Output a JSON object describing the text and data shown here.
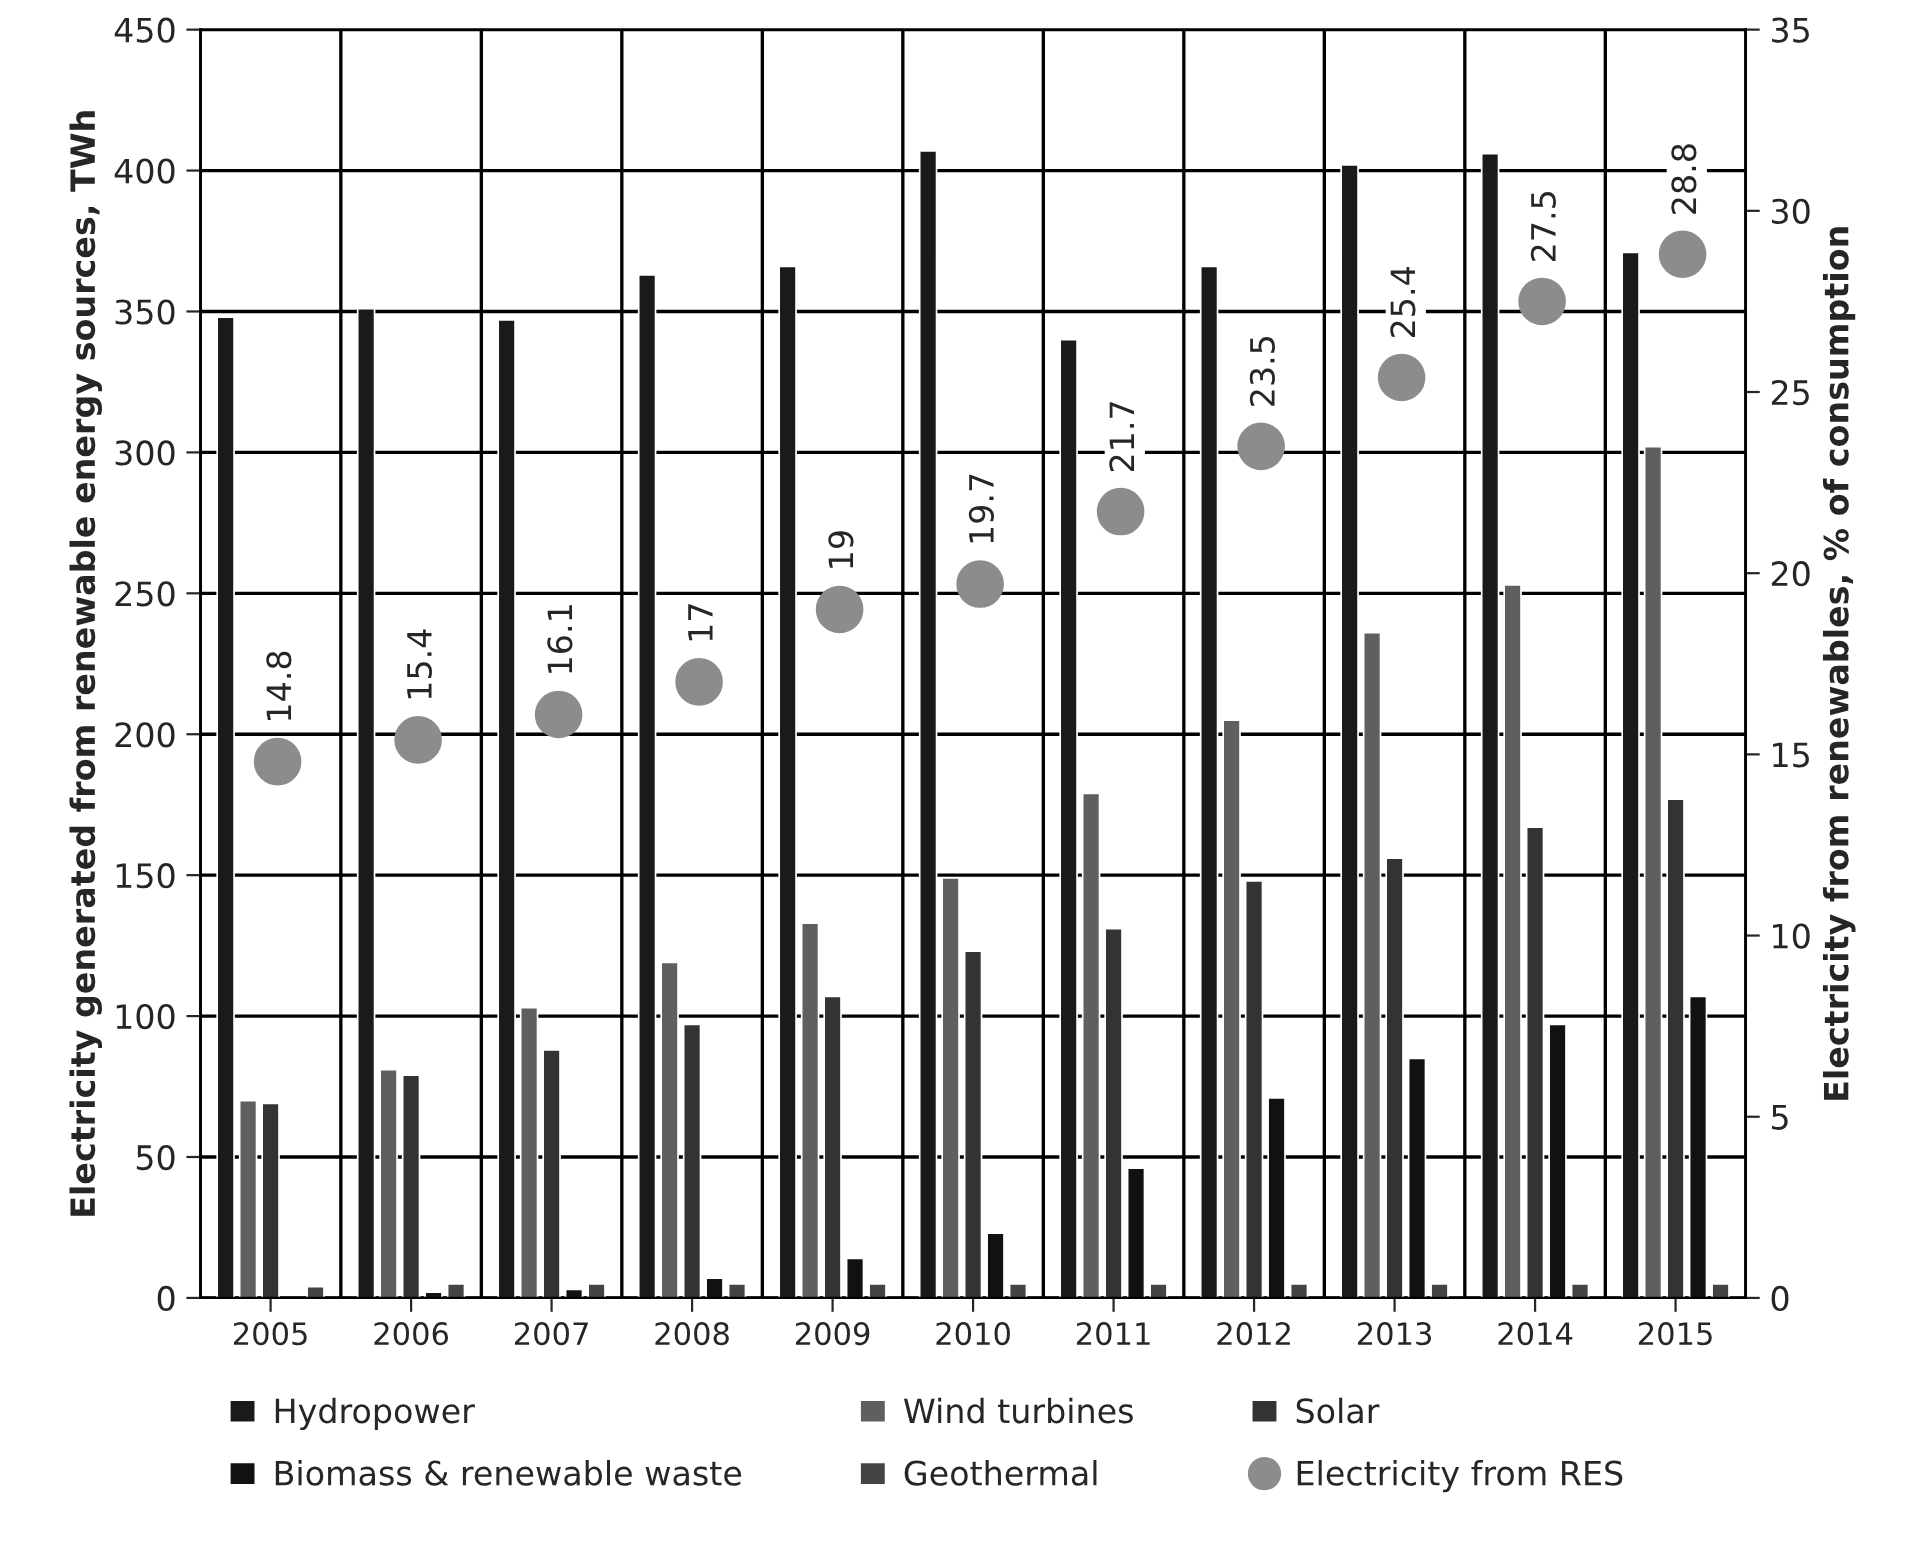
{
  "chart_data": {
    "type": "bar",
    "ylabel": "Electricity generated from renewable energy sources, TWh",
    "y2label": "Electricity from renewables, % of consumption",
    "categories": [
      "2005",
      "2006",
      "2007",
      "2008",
      "2009",
      "2010",
      "2011",
      "2012",
      "2013",
      "2014",
      "2015"
    ],
    "series": [
      {
        "name": "Hydropower",
        "color": "#1a1a1a",
        "values": [
          348,
          351,
          347,
          363,
          366,
          407,
          340,
          366,
          402,
          406,
          371
        ]
      },
      {
        "name": "Wind turbines",
        "color": "#5f5f5f",
        "values": [
          70,
          81,
          103,
          119,
          133,
          149,
          179,
          205,
          236,
          253,
          302
        ]
      },
      {
        "name": "Solar",
        "color": "#333333",
        "values": [
          69,
          79,
          88,
          97,
          107,
          123,
          131,
          148,
          156,
          167,
          177
        ]
      },
      {
        "name": "Biomass & renewable waste",
        "color": "#111111",
        "values": [
          null,
          2,
          3,
          7,
          14,
          23,
          46,
          71,
          85,
          97,
          107
        ]
      },
      {
        "name": "Geothermal",
        "color": "#444444",
        "values": [
          4,
          5,
          5,
          5,
          5,
          5,
          5,
          5,
          5,
          5,
          5
        ]
      },
      {
        "name": "Electricity from RES",
        "type": "scatter",
        "axis": "y2",
        "marker": "circle",
        "color": "#8c8c8c",
        "values": [
          14.8,
          15.4,
          16.1,
          17,
          19,
          19.7,
          21.7,
          23.5,
          25.4,
          27.5,
          28.8
        ],
        "value_labels": [
          "14.8",
          "15.4",
          "16.1",
          "17",
          "19",
          "19.7",
          "21.7",
          "23.5",
          "25.4",
          "27.5",
          "28.8"
        ]
      }
    ],
    "ylim": [
      0,
      450
    ],
    "yticks": [
      0,
      50,
      100,
      150,
      200,
      250,
      300,
      350,
      400,
      450
    ],
    "y2lim": [
      0,
      35
    ],
    "y2ticks": [
      0,
      5,
      10,
      15,
      20,
      25,
      30,
      35
    ],
    "grid": true,
    "legend": "bottom"
  }
}
